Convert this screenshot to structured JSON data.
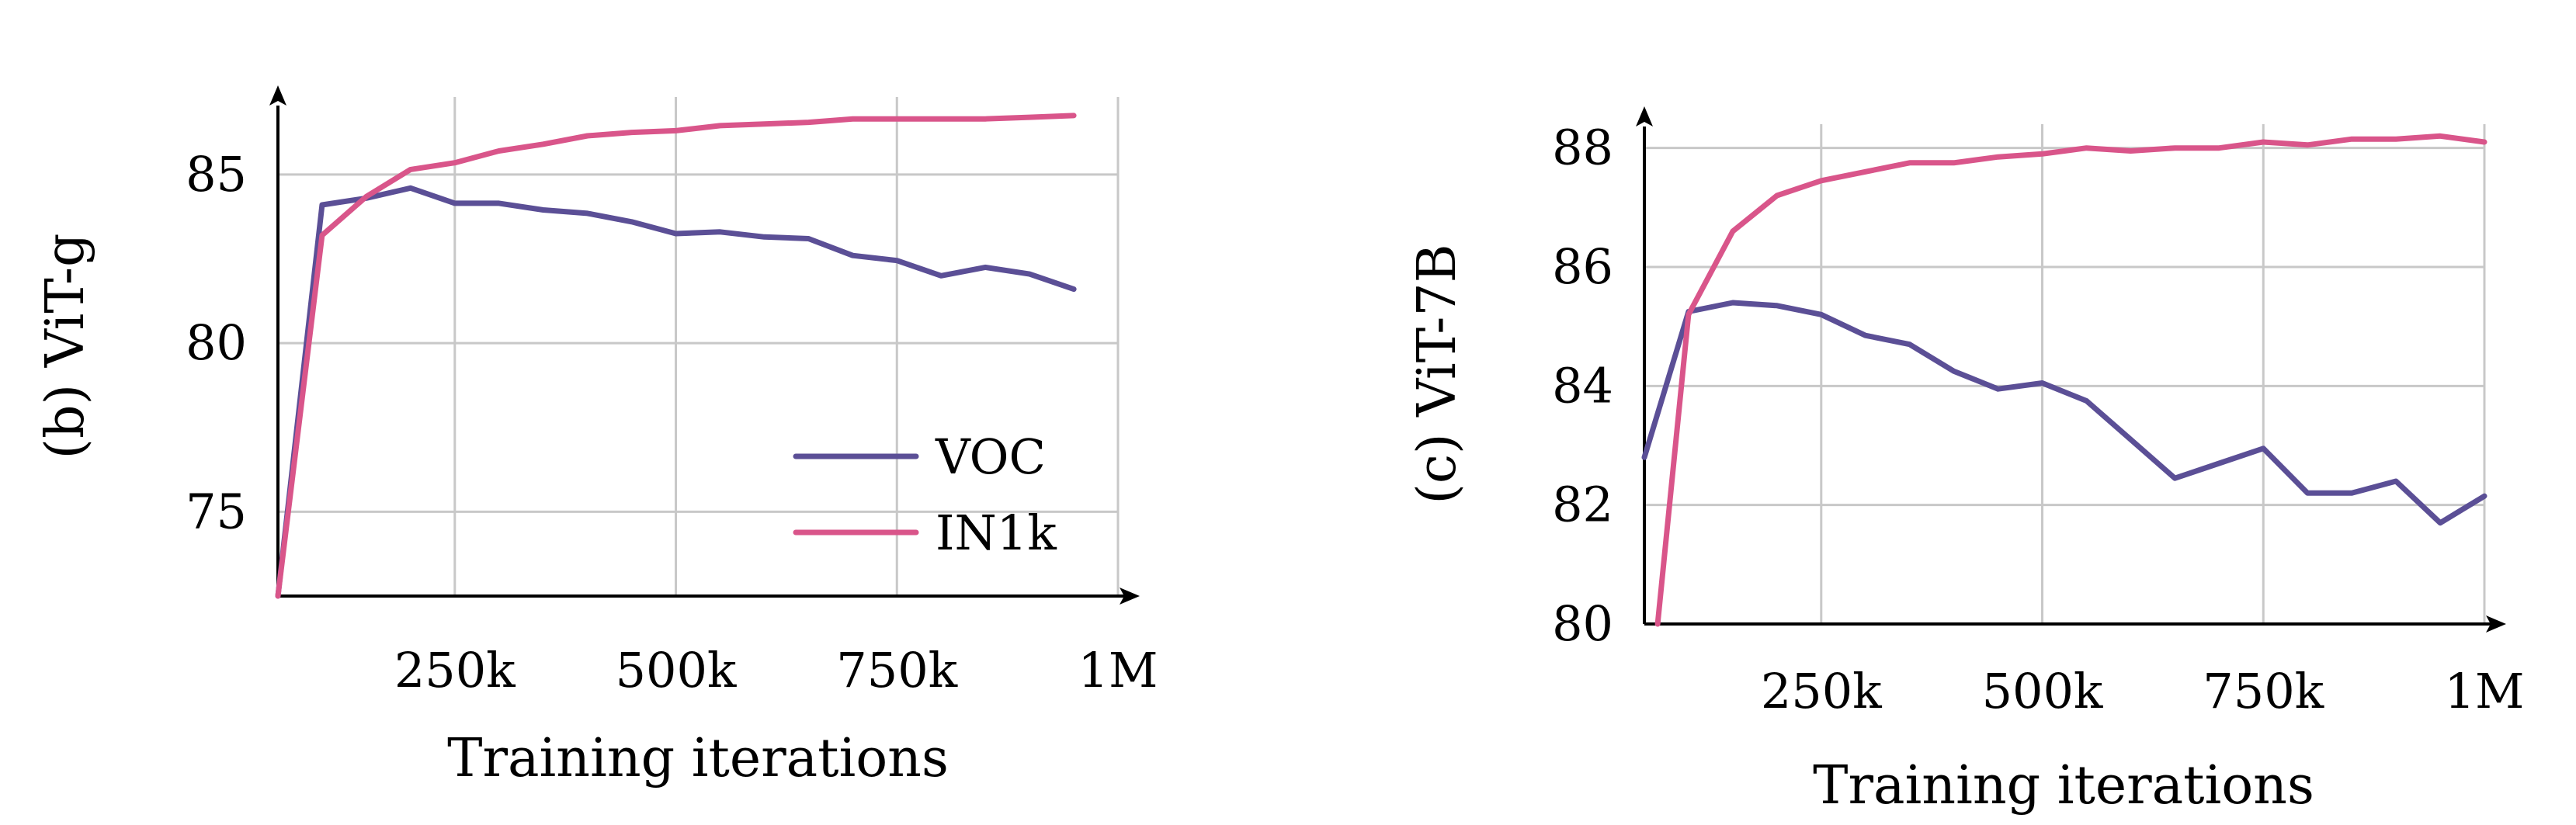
{
  "chart_data": [
    {
      "type": "line",
      "panel_label": "(b) ViT-g",
      "xlabel": "Training iterations",
      "ylabel": "",
      "xlim": [
        50000,
        1000000
      ],
      "ylim": [
        72.5,
        87.3
      ],
      "x_ticks": [
        250000,
        500000,
        750000,
        1000000
      ],
      "x_tick_labels": [
        "250k",
        "500k",
        "750k",
        "1M"
      ],
      "y_ticks": [
        75,
        80,
        85
      ],
      "y_tick_labels": [
        "75",
        "80",
        "85"
      ],
      "grid": true,
      "legend": {
        "placement": "bottom-right",
        "entries": [
          "VOC",
          "IN1k"
        ]
      },
      "series": [
        {
          "name": "VOC",
          "color": "#5b4f96",
          "x": [
            50000,
            100000,
            150000,
            200000,
            250000,
            300000,
            350000,
            400000,
            450000,
            500000,
            550000,
            600000,
            650000,
            700000,
            750000,
            800000,
            850000,
            900000,
            950000
          ],
          "y": [
            72.5,
            84.1,
            84.3,
            84.6,
            84.15,
            84.15,
            83.95,
            83.85,
            83.6,
            83.25,
            83.3,
            83.15,
            83.1,
            82.6,
            82.45,
            82.0,
            82.25,
            82.05,
            81.6
          ]
        },
        {
          "name": "IN1k",
          "color": "#d9558a",
          "x": [
            50000,
            100000,
            150000,
            200000,
            250000,
            300000,
            350000,
            400000,
            450000,
            500000,
            550000,
            600000,
            650000,
            700000,
            750000,
            800000,
            850000,
            900000,
            950000
          ],
          "y": [
            72.5,
            83.2,
            84.35,
            85.15,
            85.35,
            85.7,
            85.9,
            86.15,
            86.25,
            86.3,
            86.45,
            86.5,
            86.55,
            86.65,
            86.65,
            86.65,
            86.65,
            86.7,
            86.75
          ]
        }
      ]
    },
    {
      "type": "line",
      "panel_label": "(c) ViT-7B",
      "xlabel": "Training iterations",
      "ylabel": "",
      "xlim": [
        50000,
        1000000
      ],
      "ylim": [
        80,
        88.4
      ],
      "x_ticks": [
        250000,
        500000,
        750000,
        1000000
      ],
      "x_tick_labels": [
        "250k",
        "500k",
        "750k",
        "1M"
      ],
      "y_ticks": [
        80,
        82,
        84,
        86,
        88
      ],
      "y_tick_labels": [
        "80",
        "82",
        "84",
        "86",
        "88"
      ],
      "grid": true,
      "legend": null,
      "series": [
        {
          "name": "VOC",
          "color": "#5b4f96",
          "x": [
            50000,
            100000,
            150000,
            200000,
            250000,
            300000,
            350000,
            400000,
            450000,
            500000,
            550000,
            600000,
            650000,
            700000,
            750000,
            800000,
            850000,
            900000,
            950000,
            1000000
          ],
          "y": [
            82.8,
            85.25,
            85.4,
            85.35,
            85.2,
            84.85,
            84.7,
            84.25,
            83.95,
            84.05,
            83.75,
            83.1,
            82.45,
            82.7,
            82.95,
            82.2,
            82.2,
            82.4,
            81.7,
            82.15
          ]
        },
        {
          "name": "IN1k",
          "color": "#d9558a",
          "x": [
            65000,
            100000,
            150000,
            200000,
            250000,
            300000,
            350000,
            400000,
            450000,
            500000,
            550000,
            600000,
            650000,
            700000,
            750000,
            800000,
            850000,
            900000,
            950000,
            1000000
          ],
          "y": [
            80.0,
            85.2,
            86.6,
            87.2,
            87.45,
            87.6,
            87.75,
            87.75,
            87.85,
            87.9,
            88.0,
            87.95,
            88.0,
            88.0,
            88.1,
            88.05,
            88.15,
            88.15,
            88.2,
            88.1
          ]
        }
      ]
    }
  ]
}
